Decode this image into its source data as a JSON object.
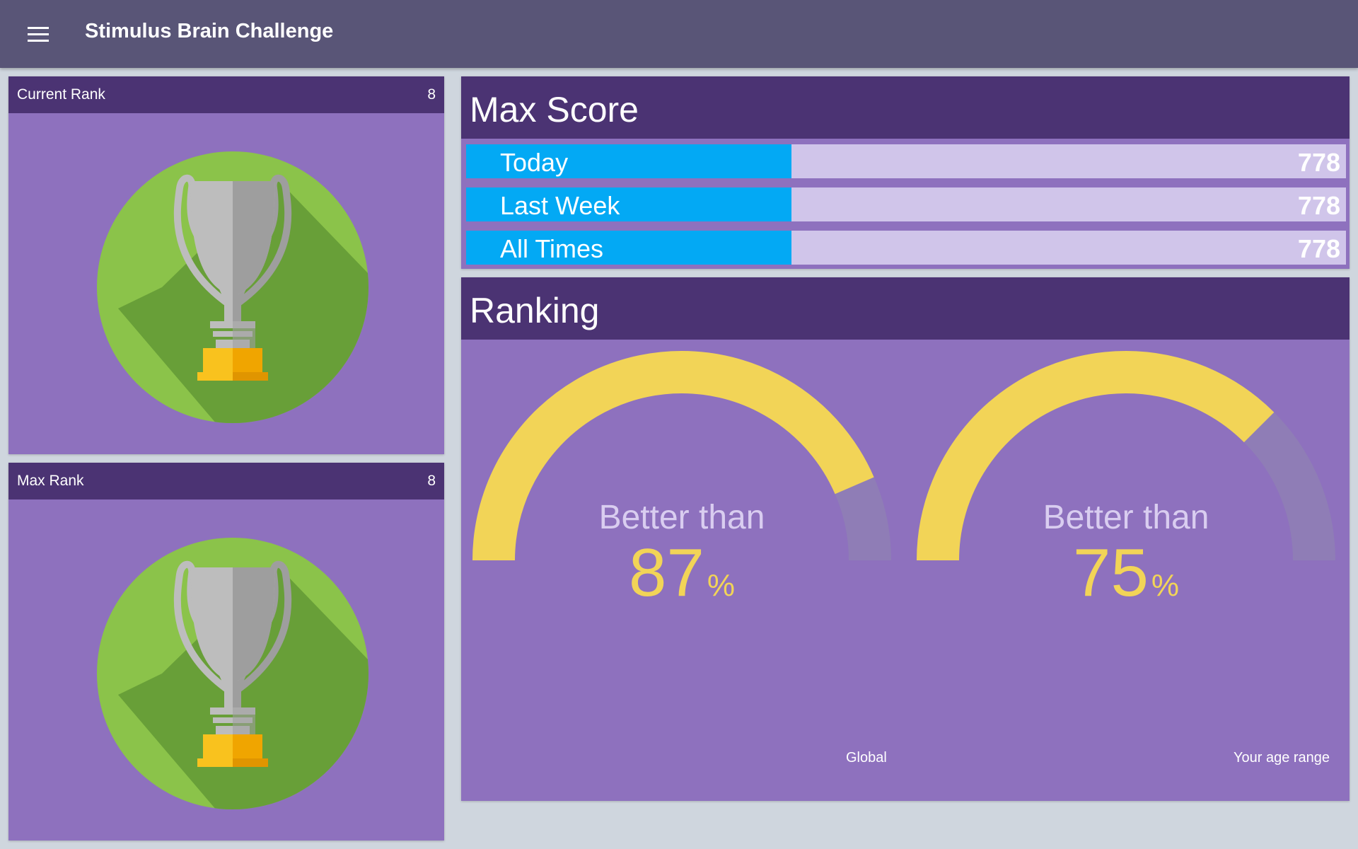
{
  "app": {
    "title": "Stimulus Brain Challenge",
    "menu_icon": "hamburger-menu-icon"
  },
  "cards": {
    "current_rank": {
      "label": "Current Rank",
      "value": "8",
      "icon": "trophy-icon"
    },
    "max_rank": {
      "label": "Max Rank",
      "value": "8",
      "icon": "trophy-icon"
    }
  },
  "max_score": {
    "title": "Max Score",
    "rows": [
      {
        "label": "Today",
        "value": "778"
      },
      {
        "label": "Last Week",
        "value": "778"
      },
      {
        "label": "All Times",
        "value": "778"
      }
    ]
  },
  "ranking": {
    "title": "Ranking",
    "gauges": [
      {
        "prefix": "Better than",
        "percent": 87,
        "percent_text": "87",
        "unit": "%",
        "caption": "Global"
      },
      {
        "prefix": "Better than",
        "percent": 75,
        "percent_text": "75",
        "unit": "%",
        "caption": "Your age range"
      }
    ]
  },
  "colors": {
    "appbar": "#595577",
    "card_header": "#4b3373",
    "card_body": "#8e71be",
    "bar_tag": "#03a9f4",
    "bar_track": "#d0c5ea",
    "gauge_fill": "#f2d457",
    "gauge_track": "#8f7db6",
    "trophy_circle": "#8bc34a"
  }
}
